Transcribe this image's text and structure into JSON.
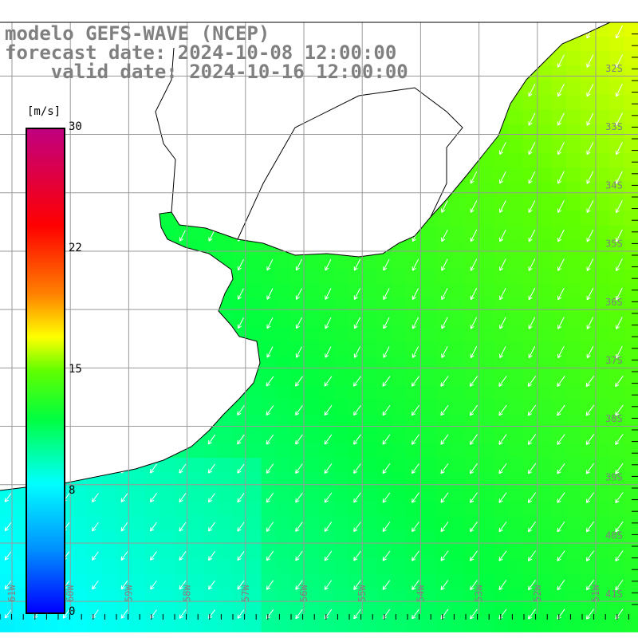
{
  "title": {
    "line1": "modelo GEFS-WAVE (NCEP)",
    "line2": "forecast date: 2024-10-08 12:00:00",
    "line3": "    valid date: 2024-10-16 12:00:00"
  },
  "colorbar": {
    "unit": "[m/s]",
    "ticks": [
      "30",
      "22",
      "15",
      "8",
      "0"
    ],
    "tick_values": [
      30,
      22,
      15,
      8,
      0
    ]
  },
  "lat_labels": [
    "32S",
    "33S",
    "34S",
    "35S",
    "36S",
    "37S",
    "38S",
    "39S",
    "40S",
    "41S"
  ],
  "lon_labels": [
    "61W",
    "60W",
    "59W",
    "58W",
    "57W",
    "56W",
    "55W",
    "54W",
    "53W",
    "52W",
    "51W"
  ],
  "field": {
    "variable": "wind speed",
    "direction": "from NE (arrows to SW)",
    "min_speed": 7,
    "max_speed": 18
  }
}
